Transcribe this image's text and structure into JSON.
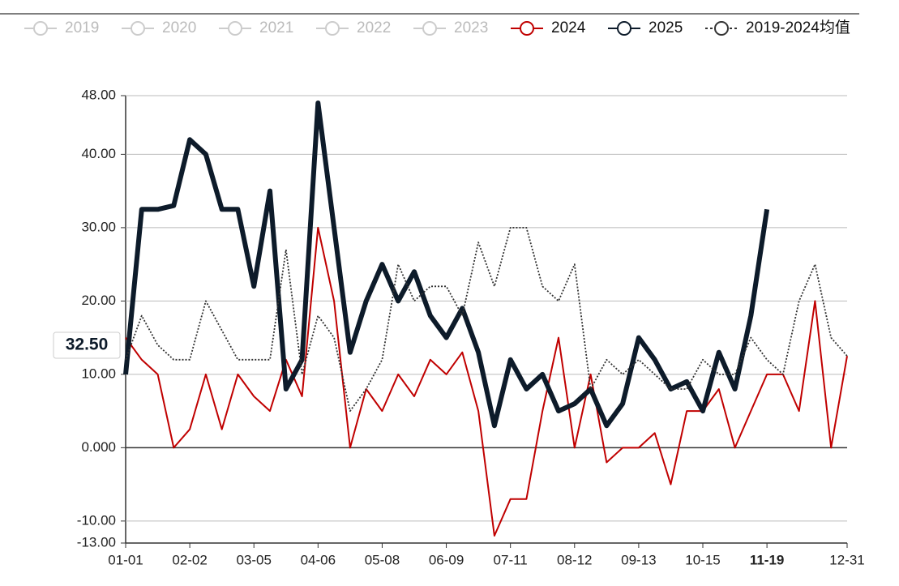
{
  "chart_data": {
    "type": "line",
    "legend_hidden": [
      "2019",
      "2020",
      "2021",
      "2022",
      "2023"
    ],
    "pointer_label": "32.50",
    "highlight_category": "11-19",
    "categories": [
      "01-01",
      "01-09",
      "01-17",
      "01-25",
      "02-02",
      "02-10",
      "02-18",
      "02-26",
      "03-05",
      "03-13",
      "03-21",
      "03-29",
      "04-06",
      "04-14",
      "04-22",
      "04-30",
      "05-08",
      "05-16",
      "05-24",
      "06-01",
      "06-09",
      "06-17",
      "06-25",
      "07-03",
      "07-11",
      "07-19",
      "07-27",
      "08-04",
      "08-12",
      "08-20",
      "08-28",
      "09-05",
      "09-13",
      "09-21",
      "09-29",
      "10-07",
      "10-15",
      "10-23",
      "10-31",
      "11-08",
      "11-19",
      "11-27",
      "12-05",
      "12-13",
      "12-21",
      "12-31"
    ],
    "series": [
      {
        "name": "2024",
        "color": "#c00000",
        "style": "solid",
        "values": [
          15,
          12,
          10,
          0,
          2.5,
          10,
          2.5,
          10,
          7,
          5,
          12,
          7,
          30,
          20,
          0,
          8,
          5,
          10,
          7,
          12,
          10,
          13,
          5,
          -12,
          -7,
          -7,
          5,
          15,
          0,
          10,
          -2,
          0,
          0,
          2,
          -5,
          5,
          5,
          8,
          0,
          5,
          10,
          10,
          5,
          20,
          0,
          12.5
        ]
      },
      {
        "name": "2025",
        "color": "#0d1b2a",
        "style": "bold",
        "values": [
          10,
          32.5,
          32.5,
          33,
          42,
          40,
          32.5,
          32.5,
          22,
          35,
          8,
          12,
          47,
          30,
          13,
          20,
          25,
          20,
          24,
          18,
          15,
          19,
          13,
          3,
          12,
          8,
          10,
          5,
          6,
          8,
          3,
          6,
          15,
          12,
          8,
          9,
          5,
          13,
          8,
          18,
          32.5,
          null,
          null,
          null,
          null,
          null
        ]
      },
      {
        "name": "2019-2024均值",
        "color": "#333333",
        "style": "dotted",
        "values": [
          12,
          18,
          14,
          12,
          12,
          20,
          16,
          12,
          12,
          12,
          27,
          10,
          18,
          15,
          5,
          8,
          12,
          25,
          20,
          22,
          22,
          18,
          28,
          22,
          30,
          30,
          22,
          20,
          25,
          8,
          12,
          10,
          12,
          10,
          8,
          8,
          12,
          10,
          10,
          15,
          12,
          10,
          20,
          25,
          15,
          12.5
        ]
      }
    ],
    "ylim": [
      -13,
      48
    ],
    "yticks": [
      {
        "value": -13,
        "label": "-13.00"
      },
      {
        "value": -10,
        "label": "-10.00"
      },
      {
        "value": 0,
        "label": "0.000"
      },
      {
        "value": 10,
        "label": "10.00"
      },
      {
        "value": 20,
        "label": "20.00"
      },
      {
        "value": 30,
        "label": "30.00"
      },
      {
        "value": 40,
        "label": "40.00"
      },
      {
        "value": 48,
        "label": "48.00"
      }
    ],
    "grid": true
  }
}
